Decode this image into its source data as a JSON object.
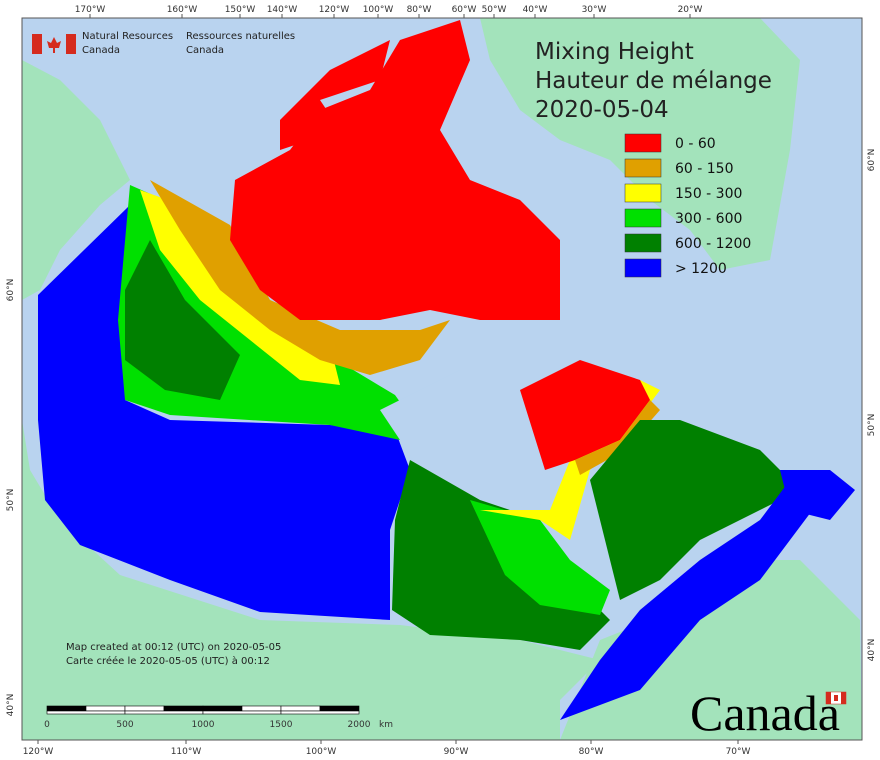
{
  "header": {
    "agency_en": [
      "Natural Resources",
      "Canada"
    ],
    "agency_fr": [
      "Ressources naturelles",
      "Canada"
    ]
  },
  "title": {
    "lines": [
      "Mixing Height",
      "Hauteur de mélange",
      "2020-05-04"
    ]
  },
  "legend": {
    "items": [
      {
        "label": "0 - 60",
        "color": "#ff0000"
      },
      {
        "label": "60 - 150",
        "color": "#e0a000"
      },
      {
        "label": "150 - 300",
        "color": "#ffff00"
      },
      {
        "label": "300 - 600",
        "color": "#00e000"
      },
      {
        "label": "600 - 1200",
        "color": "#008000"
      },
      {
        "label": "> 1200",
        "color": "#0000ff"
      }
    ]
  },
  "graticule": {
    "top": [
      "170°W",
      "160°W",
      "150°W",
      "140°W",
      "120°W",
      "100°W",
      "80°W",
      "60°W",
      "50°W",
      "40°W",
      "30°W",
      "20°W"
    ],
    "bottom": [
      "120°W",
      "110°W",
      "100°W",
      "90°W",
      "80°W",
      "70°W"
    ],
    "left": [
      "60°N",
      "50°N",
      "40°N"
    ],
    "right": [
      "60°N",
      "50°N",
      "40°N"
    ]
  },
  "footnote": [
    "Map created at 00:12 (UTC) on 2020-05-05",
    "Carte créée le 2020-05-05 (UTC) à 00:12"
  ],
  "scale_bar": {
    "labels": [
      "0",
      "500",
      "1000",
      "1500",
      "2000"
    ],
    "unit": "km"
  },
  "wordmark": "Canada"
}
